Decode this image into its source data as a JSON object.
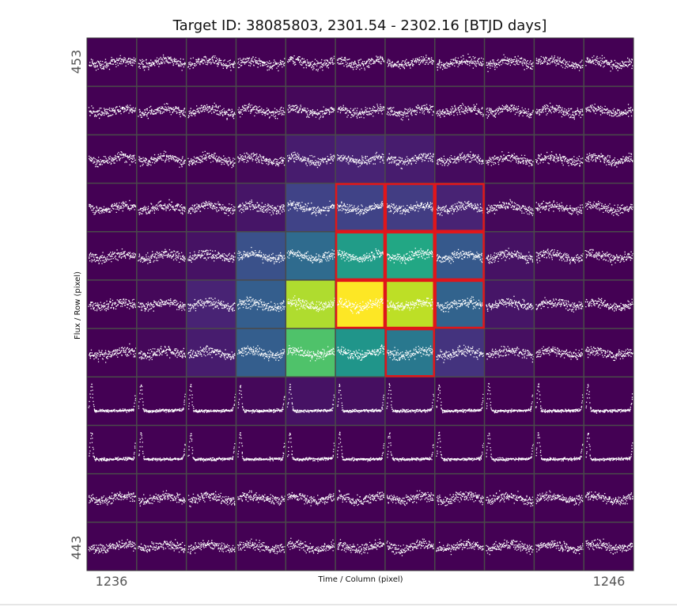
{
  "chart_data": {
    "type": "heatmap",
    "title": "Target ID: 38085803, 2301.54 - 2302.16 [BTJD days]",
    "xlabel": "Time / Column (pixel)",
    "ylabel": "Flux / Row (pixel)",
    "x_tick_labels": [
      "1236",
      "1246"
    ],
    "y_tick_labels": [
      "453",
      "443"
    ],
    "xlim": [
      1236,
      1246
    ],
    "ylim": [
      443,
      453
    ],
    "columns": [
      1236,
      1237,
      1238,
      1239,
      1240,
      1241,
      1242,
      1243,
      1244,
      1245,
      1246
    ],
    "rows": [
      453,
      452,
      451,
      450,
      449,
      448,
      447,
      446,
      445,
      444,
      443
    ],
    "pixel_flux_normalized": [
      [
        0.0,
        0.0,
        0.0,
        0.0,
        0.0,
        0.0,
        0.0,
        0.0,
        0.0,
        0.0,
        0.0
      ],
      [
        0.0,
        0.0,
        0.0,
        0.0,
        0.02,
        0.02,
        0.02,
        0.0,
        0.0,
        0.0,
        0.0
      ],
      [
        0.0,
        0.0,
        0.0,
        0.02,
        0.08,
        0.1,
        0.08,
        0.03,
        0.0,
        0.0,
        0.0
      ],
      [
        0.0,
        0.0,
        0.02,
        0.06,
        0.2,
        0.2,
        0.18,
        0.1,
        0.02,
        0.0,
        0.0
      ],
      [
        0.0,
        0.02,
        0.05,
        0.25,
        0.35,
        0.55,
        0.6,
        0.28,
        0.05,
        0.02,
        0.0
      ],
      [
        0.0,
        0.02,
        0.1,
        0.3,
        0.88,
        1.0,
        0.9,
        0.32,
        0.06,
        0.02,
        0.0
      ],
      [
        0.0,
        0.02,
        0.08,
        0.3,
        0.72,
        0.52,
        0.4,
        0.15,
        0.04,
        0.0,
        0.0
      ],
      [
        0.0,
        0.0,
        0.0,
        0.02,
        0.05,
        0.04,
        0.02,
        0.0,
        0.0,
        0.0,
        0.0
      ],
      [
        0.0,
        0.0,
        0.0,
        0.0,
        0.0,
        0.0,
        0.0,
        0.0,
        0.0,
        0.0,
        0.0
      ],
      [
        0.0,
        0.0,
        0.0,
        0.0,
        0.0,
        0.0,
        0.0,
        0.0,
        0.0,
        0.0,
        0.0
      ],
      [
        0.0,
        0.0,
        0.0,
        0.0,
        0.0,
        0.0,
        0.0,
        0.0,
        0.0,
        0.0,
        0.0
      ]
    ],
    "aperture_mask_pixels": [
      [
        450,
        1241
      ],
      [
        450,
        1242
      ],
      [
        450,
        1243
      ],
      [
        449,
        1241
      ],
      [
        449,
        1242
      ],
      [
        449,
        1243
      ],
      [
        448,
        1241
      ],
      [
        448,
        1242
      ],
      [
        448,
        1243
      ],
      [
        447,
        1242
      ]
    ],
    "row_lightcurve_style": [
      "noise",
      "noise",
      "noise",
      "noise",
      "noise",
      "noise",
      "noise",
      "transit",
      "transit",
      "noise",
      "noise"
    ],
    "colormap": "viridis",
    "colors": {
      "background": "#440154",
      "points": "#ffffff",
      "grid_lines": "#4a4a4a",
      "aperture_outline": "#e0161b"
    },
    "grid": true
  }
}
